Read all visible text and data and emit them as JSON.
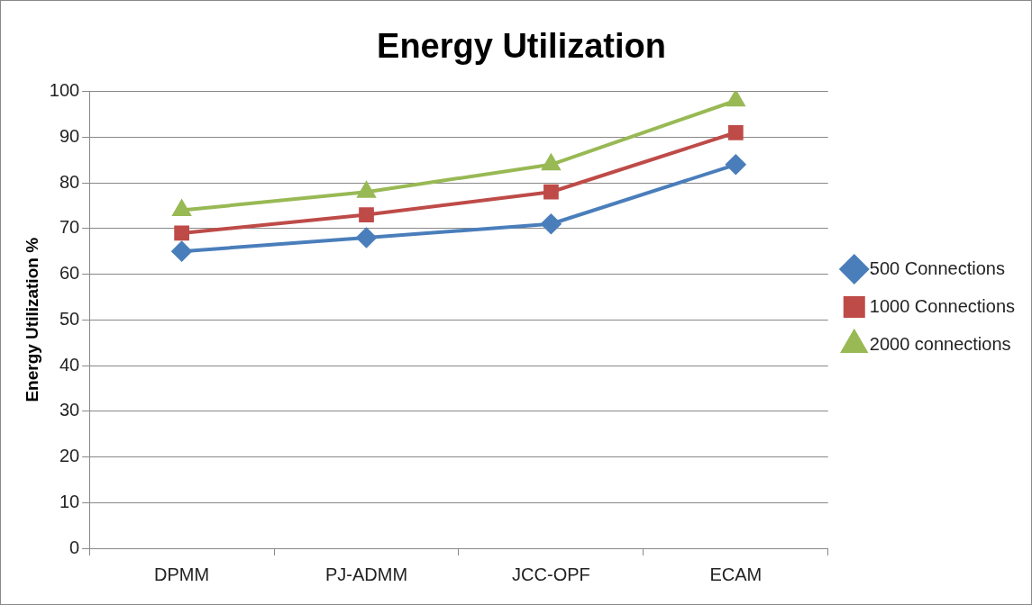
{
  "chart_data": {
    "type": "line",
    "title": "Energy Utilization",
    "ylabel": "Energy Utilization %",
    "categories": [
      "DPMM",
      "PJ-ADMM",
      "JCC-OPF",
      "ECAM"
    ],
    "series": [
      {
        "name": "500 Connections",
        "color": "#4a7ebb",
        "marker": "diamond",
        "values": [
          65,
          68,
          71,
          84
        ]
      },
      {
        "name": "1000 Connections",
        "color": "#be4b48",
        "marker": "square",
        "values": [
          69,
          73,
          78,
          91
        ]
      },
      {
        "name": "2000 connections",
        "color": "#98b954",
        "marker": "triangle",
        "values": [
          74,
          78,
          84,
          98
        ]
      }
    ],
    "ylim": [
      0,
      100
    ],
    "yticks": [
      0,
      10,
      20,
      30,
      40,
      50,
      60,
      70,
      80,
      90,
      100
    ],
    "grid": "y",
    "legend": "right",
    "line_style": "solid"
  }
}
